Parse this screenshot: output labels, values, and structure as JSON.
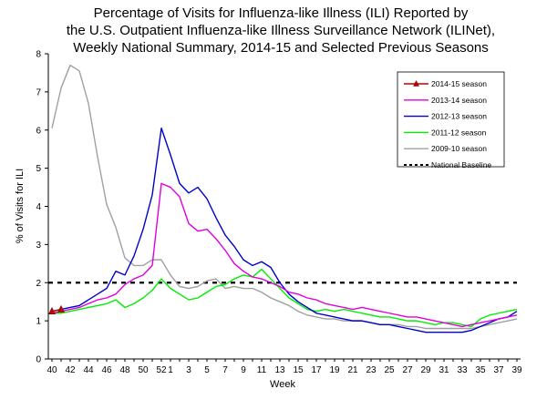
{
  "chart_data": {
    "type": "line",
    "title": [
      "Percentage of Visits for Influenza-like Illness (ILI) Reported by",
      "the U.S. Outpatient Influenza-like Illness Surveillance Network (ILINet),",
      "Weekly National Summary, 2014-15 and Selected Previous Seasons"
    ],
    "xlabel": "Week",
    "ylabel": "% of Visits for ILI",
    "ylim": [
      0,
      8
    ],
    "yticks": [
      "0",
      "1",
      "2",
      "3",
      "4",
      "5",
      "6",
      "7",
      "8"
    ],
    "x_weeks": [
      40,
      41,
      42,
      43,
      44,
      45,
      46,
      47,
      48,
      49,
      50,
      51,
      52,
      1,
      2,
      3,
      4,
      5,
      6,
      7,
      8,
      9,
      10,
      11,
      12,
      13,
      14,
      15,
      16,
      17,
      18,
      19,
      20,
      21,
      22,
      23,
      24,
      25,
      26,
      27,
      28,
      29,
      30,
      31,
      32,
      33,
      34,
      35,
      36,
      37,
      38,
      39
    ],
    "x_tick_labels": [
      "40",
      "42",
      "44",
      "46",
      "48",
      "50",
      "52",
      "1",
      "3",
      "5",
      "7",
      "9",
      "11",
      "13",
      "15",
      "17",
      "19",
      "21",
      "23",
      "25",
      "27",
      "29",
      "31",
      "33",
      "35",
      "37",
      "39"
    ],
    "legend_position": "top-right",
    "grid": false,
    "series": [
      {
        "name": "2014-15 season",
        "color": "#c00000",
        "marker": "triangle",
        "values": [
          1.25,
          1.3,
          null,
          null,
          null,
          null,
          null,
          null,
          null,
          null,
          null,
          null,
          null,
          null,
          null,
          null,
          null,
          null,
          null,
          null,
          null,
          null,
          null,
          null,
          null,
          null,
          null,
          null,
          null,
          null,
          null,
          null,
          null,
          null,
          null,
          null,
          null,
          null,
          null,
          null,
          null,
          null,
          null,
          null,
          null,
          null,
          null,
          null,
          null,
          null,
          null,
          null
        ]
      },
      {
        "name": "2013-14 season",
        "color": "#e000e0",
        "values": [
          1.2,
          1.25,
          1.3,
          1.35,
          1.45,
          1.55,
          1.6,
          1.7,
          1.95,
          2.1,
          2.2,
          2.45,
          4.6,
          4.5,
          4.25,
          3.55,
          3.35,
          3.4,
          3.15,
          2.85,
          2.5,
          2.3,
          2.15,
          2.1,
          2.0,
          1.9,
          1.75,
          1.7,
          1.6,
          1.55,
          1.45,
          1.4,
          1.35,
          1.3,
          1.35,
          1.3,
          1.25,
          1.2,
          1.15,
          1.1,
          1.1,
          1.05,
          1.0,
          0.95,
          0.9,
          0.85,
          0.9,
          0.95,
          1.0,
          1.05,
          1.1,
          1.15
        ]
      },
      {
        "name": "2012-13 season",
        "color": "#0000cc",
        "values": [
          1.25,
          1.3,
          1.35,
          1.4,
          1.55,
          1.7,
          1.85,
          2.3,
          2.2,
          2.7,
          3.4,
          4.3,
          6.05,
          5.35,
          4.6,
          4.35,
          4.5,
          4.2,
          3.7,
          3.25,
          2.95,
          2.6,
          2.45,
          2.55,
          2.4,
          2.0,
          1.7,
          1.5,
          1.35,
          1.2,
          1.15,
          1.1,
          1.05,
          1.0,
          1.0,
          0.95,
          0.9,
          0.9,
          0.85,
          0.8,
          0.75,
          0.7,
          0.7,
          0.7,
          0.7,
          0.7,
          0.75,
          0.85,
          0.95,
          1.05,
          1.1,
          1.25
        ]
      },
      {
        "name": "2011-12 season",
        "color": "#00ee00",
        "values": [
          1.2,
          1.2,
          1.25,
          1.3,
          1.35,
          1.4,
          1.45,
          1.55,
          1.35,
          1.45,
          1.6,
          1.8,
          2.1,
          1.85,
          1.7,
          1.55,
          1.6,
          1.75,
          1.9,
          1.95,
          2.1,
          2.2,
          2.15,
          2.35,
          2.1,
          1.85,
          1.6,
          1.45,
          1.3,
          1.25,
          1.3,
          1.25,
          1.3,
          1.25,
          1.2,
          1.15,
          1.1,
          1.1,
          1.05,
          1.0,
          1.0,
          0.95,
          0.9,
          0.95,
          0.95,
          0.9,
          0.85,
          1.05,
          1.15,
          1.2,
          1.25,
          1.3
        ]
      },
      {
        "name": "2009-10 season",
        "color": "#a0a0a0",
        "values": [
          6.05,
          7.1,
          7.7,
          7.55,
          6.7,
          5.3,
          4.05,
          3.45,
          2.65,
          2.45,
          2.45,
          2.6,
          2.6,
          2.2,
          1.9,
          1.85,
          1.9,
          2.05,
          2.1,
          1.85,
          1.9,
          1.85,
          1.85,
          1.75,
          1.6,
          1.5,
          1.4,
          1.25,
          1.15,
          1.1,
          1.05,
          1.05,
          1.0,
          1.0,
          1.0,
          0.95,
          0.9,
          0.9,
          0.9,
          0.85,
          0.85,
          0.8,
          0.8,
          0.8,
          0.8,
          0.8,
          0.8,
          0.85,
          0.9,
          0.95,
          1.0,
          1.05
        ]
      }
    ],
    "baseline": {
      "name": "National Baseline",
      "value": 2.0,
      "color": "#000000"
    }
  }
}
